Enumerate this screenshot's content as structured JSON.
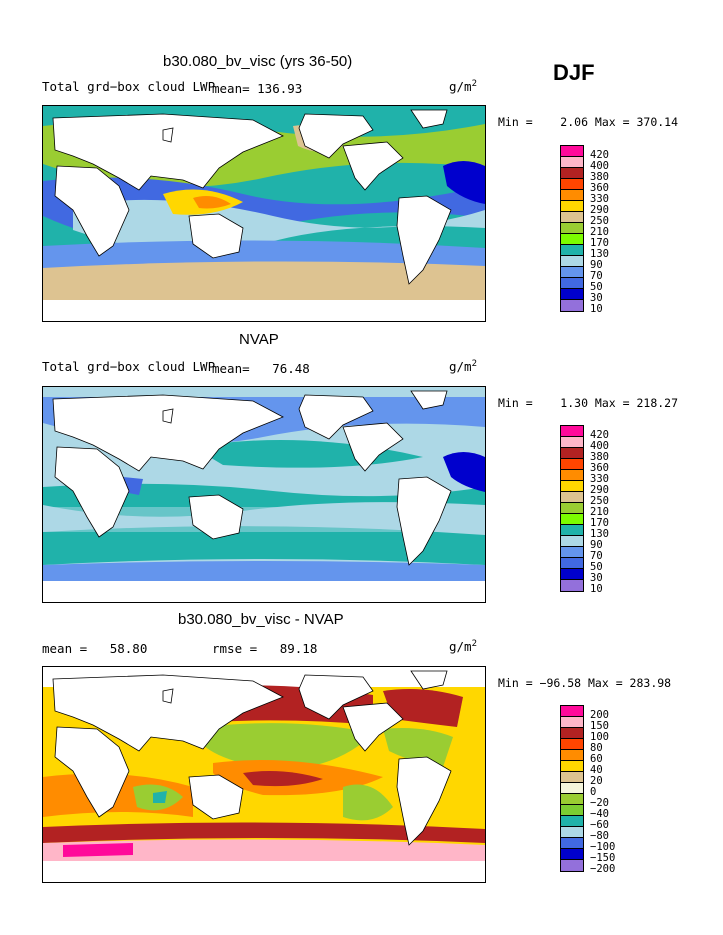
{
  "season": "DJF",
  "panels": [
    {
      "title": "b30.080_bv_visc (yrs 36-50)",
      "variable": "Total grd−box cloud LWP",
      "mean_text": "mean=  136.93",
      "units": "g/m",
      "units_exp": "2",
      "minmax": "Min =    2.06 Max = 370.14",
      "levels": [
        "420",
        "400",
        "380",
        "360",
        "330",
        "290",
        "250",
        "210",
        "170",
        "130",
        "90",
        "70",
        "50",
        "30",
        "10"
      ]
    },
    {
      "title": "NVAP",
      "variable": "Total grd−box cloud LWP",
      "mean_text": "mean=   76.48",
      "units": "g/m",
      "units_exp": "2",
      "minmax": "Min =    1.30 Max = 218.27",
      "levels": [
        "420",
        "400",
        "380",
        "360",
        "330",
        "290",
        "250",
        "210",
        "170",
        "130",
        "90",
        "70",
        "50",
        "30",
        "10"
      ]
    },
    {
      "title": "b30.080_bv_visc - NVAP",
      "mean_text": "mean =   58.80",
      "rmse_text": "rmse =   89.18",
      "units": "g/m",
      "units_exp": "2",
      "minmax": "Min = −96.58 Max = 283.98",
      "levels": [
        "200",
        "150",
        "100",
        "80",
        "60",
        "40",
        "20",
        "0",
        "−20",
        "−40",
        "−60",
        "−80",
        "−100",
        "−150",
        "−200"
      ]
    }
  ],
  "colors": {
    "abs_scale": [
      "#ff0a9a",
      "#ffb6c8",
      "#b22222",
      "#ff4500",
      "#ff8c00",
      "#ffd700",
      "#ddc391",
      "#9acd32",
      "#7cfc00",
      "#20b2aa",
      "#add8e6",
      "#6495ed",
      "#4169e1",
      "#0000cd",
      "#9370db"
    ],
    "diff_scale": [
      "#ff0a9a",
      "#ffb6c8",
      "#b22222",
      "#ff4500",
      "#ff8c00",
      "#ffd700",
      "#ddc391",
      "#f5f5dc",
      "#9acd32",
      "#7ccd32",
      "#20b2aa",
      "#add8e6",
      "#4169e1",
      "#0000cd",
      "#9370db"
    ]
  }
}
